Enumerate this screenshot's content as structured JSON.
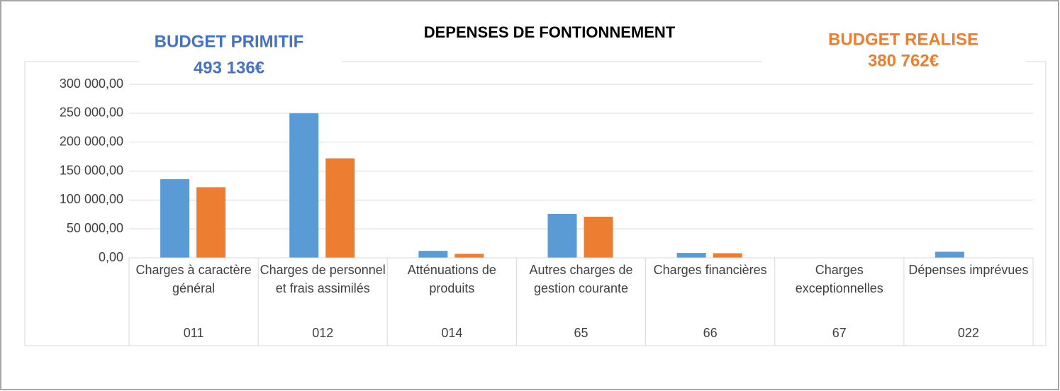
{
  "chart_data": {
    "type": "bar",
    "title": "DEPENSES DE FONTIONNEMENT",
    "categories": [
      {
        "label": "Charges à caractère général",
        "code": "011"
      },
      {
        "label": "Charges de personnel et frais assimilés",
        "code": "012"
      },
      {
        "label": "Atténuations de produits",
        "code": "014"
      },
      {
        "label": "Autres charges de gestion courante",
        "code": "65"
      },
      {
        "label": "Charges financières",
        "code": "66"
      },
      {
        "label": "Charges exceptionnelles",
        "code": "67"
      },
      {
        "label": "Dépenses imprévues",
        "code": "022"
      }
    ],
    "series": [
      {
        "name": "BUDGET PRIMITIF",
        "total": "493 136€",
        "color": "#5b9bd5",
        "values": [
          136000,
          250000,
          12000,
          76000,
          8500,
          0,
          10500
        ]
      },
      {
        "name": "BUDGET REALISE",
        "total": "380 762€",
        "color": "#ed7d31",
        "values": [
          122000,
          172000,
          7000,
          71000,
          8000,
          0,
          0
        ]
      }
    ],
    "ylim": [
      0,
      300000
    ],
    "yticks": [
      {
        "value": 0,
        "label": "0,00"
      },
      {
        "value": 50000,
        "label": "50 000,00"
      },
      {
        "value": 100000,
        "label": "100 000,00"
      },
      {
        "value": 150000,
        "label": "150 000,00"
      },
      {
        "value": 200000,
        "label": "200 000,00"
      },
      {
        "value": 250000,
        "label": "250 000,00"
      },
      {
        "value": 300000,
        "label": "300 000,00"
      }
    ],
    "grid": true
  }
}
